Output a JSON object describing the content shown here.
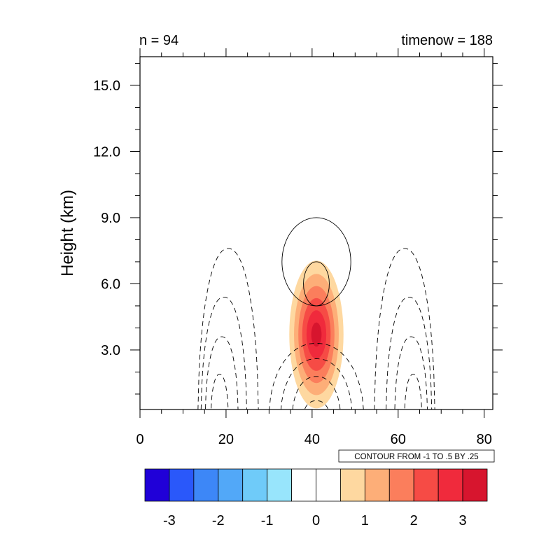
{
  "chart_data": {
    "type": "contour",
    "title_left": "n = 94",
    "title_right": "timenow = 188",
    "xlabel": "",
    "ylabel": "Height (km)",
    "xlim": [
      0,
      82
    ],
    "ylim": [
      0.3,
      16.3
    ],
    "x_ticks": [
      0,
      20,
      40,
      60,
      80
    ],
    "x_tick_labels": [
      "0",
      "20",
      "40",
      "60",
      "80"
    ],
    "y_ticks": [
      3.0,
      6.0,
      9.0,
      12.0,
      15.0
    ],
    "y_tick_labels": [
      "3.0",
      "6.0",
      "9.0",
      "12.0",
      "15.0"
    ],
    "contour_info": "CONTOUR FROM -1 TO .5 BY .25",
    "filled_field": {
      "center": [
        41,
        3.7
      ],
      "levels": [
        {
          "value": 0.5,
          "half_width": 6.3,
          "half_height": 3.35,
          "color": "#fed8a0"
        },
        {
          "value": 1.0,
          "half_width": 5.2,
          "half_height": 2.75,
          "color": "#fdae78"
        },
        {
          "value": 1.5,
          "half_width": 4.2,
          "half_height": 2.2,
          "color": "#fb7e5c"
        },
        {
          "value": 2.0,
          "half_width": 3.3,
          "half_height": 1.65,
          "color": "#f64b45"
        },
        {
          "value": 2.5,
          "half_width": 2.3,
          "half_height": 1.1,
          "color": "#f02a3c"
        },
        {
          "value": 3.0,
          "half_width": 1.2,
          "half_height": 0.55,
          "color": "#d7152e"
        }
      ]
    },
    "positive_contours": [
      {
        "cx": 41,
        "cy": 7.0,
        "rx": 8.0,
        "ry": 2.0
      },
      {
        "cx": 41,
        "cy": 6.0,
        "rx": 3.0,
        "ry": 1.0
      }
    ],
    "negative_contours": [
      {
        "cx": 20.5,
        "peak": 7.6,
        "half_width": 7.0
      },
      {
        "cx": 19.5,
        "peak": 5.4,
        "half_width": 5.3
      },
      {
        "cx": 19.0,
        "peak": 3.6,
        "half_width": 3.8
      },
      {
        "cx": 18.5,
        "peak": 1.9,
        "half_width": 2.0
      },
      {
        "cx": 61.5,
        "peak": 7.6,
        "half_width": 7.0
      },
      {
        "cx": 62.5,
        "peak": 5.4,
        "half_width": 5.3
      },
      {
        "cx": 63.0,
        "peak": 3.6,
        "half_width": 3.8
      },
      {
        "cx": 63.5,
        "peak": 1.9,
        "half_width": 2.0
      },
      {
        "cx": 41,
        "peak": 3.3,
        "half_width": 11.0
      },
      {
        "cx": 41,
        "peak": 2.6,
        "half_width": 8.3
      },
      {
        "cx": 41,
        "peak": 1.8,
        "half_width": 5.6
      },
      {
        "cx": 41,
        "peak": 0.7,
        "half_width": 3.0
      }
    ],
    "colorbar": {
      "colors": [
        "#2000d8",
        "#2a58fa",
        "#3d87f7",
        "#52a8f8",
        "#6fcbf9",
        "#98e5fc",
        "#ffffff",
        "#ffffff",
        "#fed8a0",
        "#fdae78",
        "#fb7e5c",
        "#f64b45",
        "#f02a3c",
        "#d7152e"
      ],
      "labels": [
        {
          "text": "-3",
          "index": 1
        },
        {
          "text": "-2",
          "index": 3
        },
        {
          "text": "-1",
          "index": 5
        },
        {
          "text": "0",
          "index": 7
        },
        {
          "text": "1",
          "index": 9
        },
        {
          "text": "2",
          "index": 11
        },
        {
          "text": "3",
          "index": 13
        }
      ]
    }
  }
}
